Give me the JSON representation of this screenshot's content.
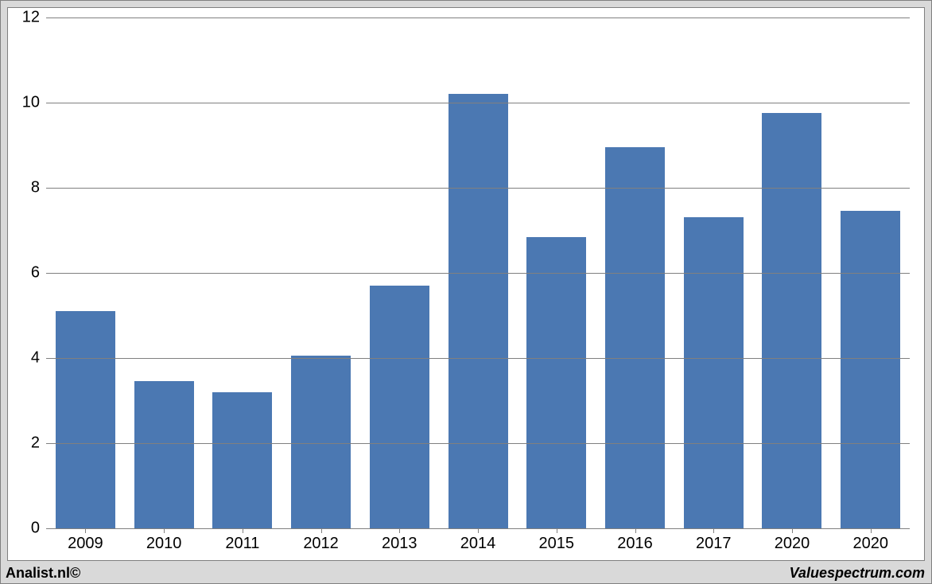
{
  "chart": {
    "type": "bar",
    "categories": [
      "2009",
      "2010",
      "2011",
      "2012",
      "2013",
      "2014",
      "2015",
      "2016",
      "2017",
      "2020",
      "2020"
    ],
    "values": [
      5.1,
      3.45,
      3.2,
      4.05,
      5.7,
      10.2,
      6.85,
      8.95,
      7.3,
      9.75,
      7.45
    ],
    "bar_color": "#4b78b2",
    "bar_width": 0.76,
    "ylim": [
      0,
      12
    ],
    "yticks": [
      0,
      2,
      4,
      6,
      8,
      10,
      12
    ],
    "grid_color": "#808080",
    "axis_color": "#808080",
    "background_color": "#ffffff",
    "outer_background": "#d9d9d9",
    "tick_fontsize": 20,
    "tick_color": "#000000"
  },
  "footer": {
    "left": "Analist.nl©",
    "right": "Valuespectrum.com"
  }
}
